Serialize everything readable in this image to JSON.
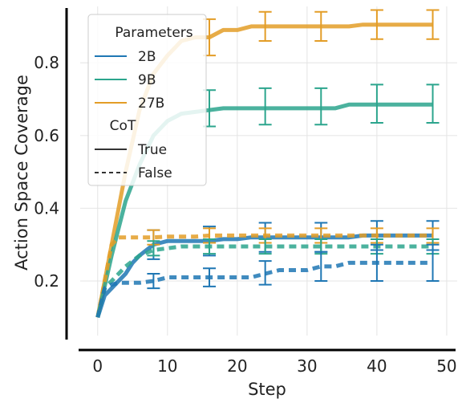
{
  "chart_data": {
    "type": "line",
    "xlabel": "Step",
    "ylabel": "Action Space Coverage",
    "xlim": [
      -2.5,
      51.5
    ],
    "ylim": [
      0.05,
      0.955
    ],
    "xticks": [
      0,
      10,
      20,
      30,
      40,
      50
    ],
    "yticks": [
      0.2,
      0.4,
      0.6,
      0.8
    ],
    "ytick_labels": [
      "0.2",
      "0.4",
      "0.6",
      "0.8"
    ],
    "grid": true,
    "legend": {
      "placement": "top-left",
      "size_title": "Parameters",
      "style_title": "CoT",
      "size_entries": [
        {
          "label": "2B",
          "color": "#1f77b4"
        },
        {
          "label": "9B",
          "color": "#2ca58d"
        },
        {
          "label": "27B",
          "color": "#e39d27"
        }
      ],
      "style_entries": [
        {
          "label": "True",
          "dash": "solid"
        },
        {
          "label": "False",
          "dash": "dashed"
        }
      ]
    },
    "series": [
      {
        "name": "27B",
        "cot": "True",
        "color": "#e39d27",
        "x": [
          0,
          2,
          4,
          6,
          8,
          10,
          12,
          14,
          16,
          18,
          20,
          22,
          24,
          26,
          28,
          30,
          32,
          34,
          36,
          38,
          40,
          42,
          44,
          46,
          48
        ],
        "y": [
          0.1,
          0.3,
          0.5,
          0.67,
          0.77,
          0.82,
          0.86,
          0.87,
          0.87,
          0.89,
          0.89,
          0.9,
          0.9,
          0.9,
          0.9,
          0.9,
          0.9,
          0.9,
          0.9,
          0.905,
          0.905,
          0.905,
          0.905,
          0.905,
          0.905
        ],
        "error_x": [
          16,
          24,
          32,
          40,
          48
        ],
        "error_low": [
          0.82,
          0.86,
          0.86,
          0.865,
          0.865
        ],
        "error_high": [
          0.92,
          0.94,
          0.94,
          0.945,
          0.945
        ]
      },
      {
        "name": "9B",
        "cot": "True",
        "color": "#2ca58d",
        "x": [
          0,
          2,
          4,
          6,
          8,
          10,
          12,
          14,
          16,
          18,
          20,
          22,
          24,
          26,
          28,
          30,
          32,
          34,
          36,
          38,
          40,
          42,
          44,
          46,
          48
        ],
        "y": [
          0.1,
          0.27,
          0.42,
          0.52,
          0.6,
          0.64,
          0.66,
          0.665,
          0.67,
          0.675,
          0.675,
          0.675,
          0.675,
          0.675,
          0.675,
          0.675,
          0.675,
          0.675,
          0.685,
          0.685,
          0.685,
          0.685,
          0.685,
          0.685,
          0.685
        ],
        "error_x": [
          16,
          24,
          32,
          40,
          48
        ],
        "error_low": [
          0.625,
          0.63,
          0.63,
          0.635,
          0.635
        ],
        "error_high": [
          0.725,
          0.73,
          0.73,
          0.74,
          0.74
        ]
      },
      {
        "name": "2B",
        "cot": "True",
        "color": "#1f77b4",
        "x": [
          0,
          1,
          2,
          3,
          4,
          5,
          6,
          7,
          8,
          9,
          10,
          12,
          14,
          16,
          18,
          20,
          22,
          24,
          26,
          28,
          30,
          32,
          34,
          36,
          38,
          40,
          42,
          44,
          46,
          48
        ],
        "y": [
          0.1,
          0.16,
          0.18,
          0.2,
          0.22,
          0.25,
          0.27,
          0.285,
          0.3,
          0.305,
          0.31,
          0.31,
          0.31,
          0.31,
          0.315,
          0.315,
          0.32,
          0.32,
          0.32,
          0.32,
          0.32,
          0.32,
          0.32,
          0.32,
          0.325,
          0.325,
          0.325,
          0.325,
          0.325,
          0.325
        ],
        "error_x": [
          8,
          16,
          24,
          32,
          40,
          48
        ],
        "error_low": [
          0.26,
          0.27,
          0.28,
          0.28,
          0.285,
          0.285
        ],
        "error_high": [
          0.34,
          0.35,
          0.36,
          0.36,
          0.365,
          0.365
        ]
      },
      {
        "name": "27B",
        "cot": "False",
        "color": "#e39d27",
        "x": [
          0,
          1,
          2,
          3,
          4,
          6,
          8,
          10,
          12,
          14,
          16,
          20,
          24,
          28,
          32,
          36,
          40,
          44,
          48
        ],
        "y": [
          0.1,
          0.2,
          0.3,
          0.32,
          0.32,
          0.32,
          0.32,
          0.322,
          0.322,
          0.322,
          0.325,
          0.325,
          0.325,
          0.325,
          0.325,
          0.325,
          0.325,
          0.325,
          0.325
        ],
        "error_x": [
          8,
          16,
          24,
          32,
          40,
          48
        ],
        "error_low": [
          0.3,
          0.305,
          0.305,
          0.305,
          0.305,
          0.305
        ],
        "error_high": [
          0.34,
          0.345,
          0.345,
          0.345,
          0.345,
          0.345
        ]
      },
      {
        "name": "9B",
        "cot": "False",
        "color": "#2ca58d",
        "x": [
          0,
          1,
          2,
          3,
          4,
          6,
          8,
          10,
          12,
          14,
          16,
          20,
          24,
          28,
          32,
          36,
          40,
          44,
          48
        ],
        "y": [
          0.1,
          0.18,
          0.2,
          0.22,
          0.24,
          0.27,
          0.285,
          0.29,
          0.295,
          0.295,
          0.295,
          0.295,
          0.295,
          0.295,
          0.295,
          0.295,
          0.295,
          0.295,
          0.295
        ],
        "error_x": [
          8,
          16,
          24,
          32,
          40,
          48
        ],
        "error_low": [
          0.27,
          0.275,
          0.275,
          0.275,
          0.275,
          0.275
        ],
        "error_high": [
          0.31,
          0.315,
          0.315,
          0.315,
          0.315,
          0.315
        ]
      },
      {
        "name": "2B",
        "cot": "False",
        "color": "#1f77b4",
        "x": [
          0,
          1,
          2,
          3,
          4,
          6,
          8,
          10,
          12,
          14,
          16,
          18,
          20,
          22,
          24,
          26,
          28,
          30,
          32,
          34,
          36,
          38,
          40,
          42,
          44,
          46,
          48
        ],
        "y": [
          0.1,
          0.18,
          0.19,
          0.195,
          0.195,
          0.195,
          0.2,
          0.21,
          0.21,
          0.21,
          0.21,
          0.21,
          0.21,
          0.21,
          0.22,
          0.23,
          0.23,
          0.23,
          0.24,
          0.24,
          0.25,
          0.25,
          0.25,
          0.25,
          0.25,
          0.25,
          0.25
        ],
        "error_x": [
          8,
          16,
          24,
          32,
          40,
          48
        ],
        "error_low": [
          0.18,
          0.185,
          0.19,
          0.2,
          0.2,
          0.2
        ],
        "error_high": [
          0.22,
          0.235,
          0.255,
          0.28,
          0.3,
          0.3
        ]
      }
    ]
  }
}
